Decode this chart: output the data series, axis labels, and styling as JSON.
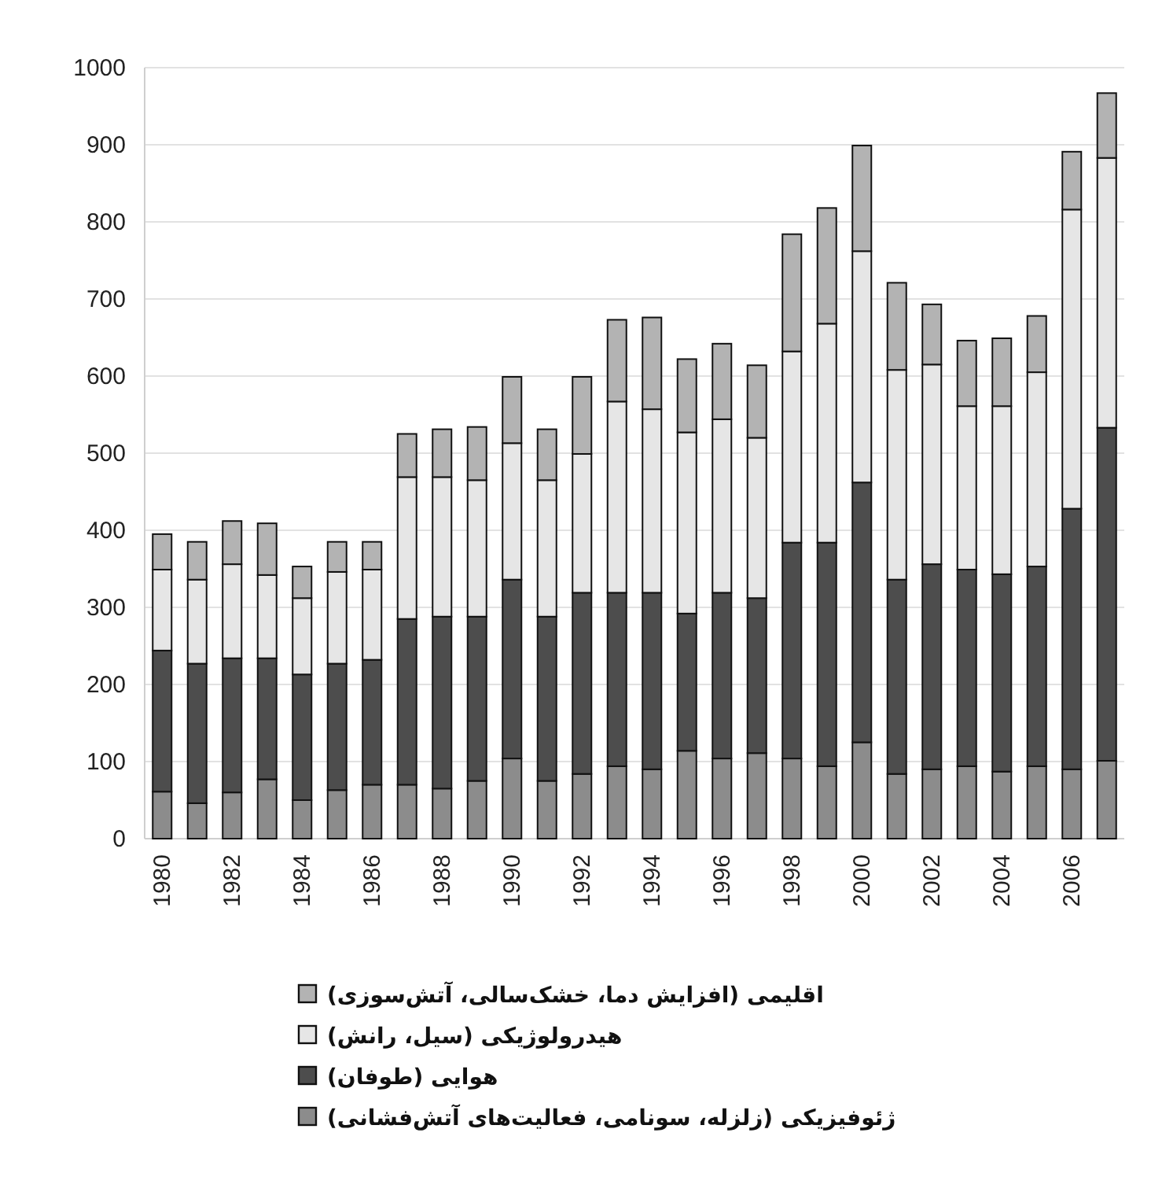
{
  "chart_data": {
    "type": "bar",
    "stacked": true,
    "grid": "y",
    "legend": "bottom",
    "categories": [
      "1980",
      null,
      "1982",
      null,
      "1984",
      null,
      "1986",
      null,
      "1988",
      null,
      "1990",
      null,
      "1992",
      null,
      "1994",
      null,
      "1996",
      null,
      "1998",
      null,
      "2000",
      null,
      "2002",
      null,
      "2004",
      null,
      "2006",
      null
    ],
    "ylim": [
      0,
      1000
    ],
    "yticks": [
      0,
      100,
      200,
      300,
      400,
      500,
      600,
      700,
      800,
      900,
      1000
    ],
    "series": [
      {
        "name": "ژئوفیزیکی (زلزله، سونامی، فعالیت‌های آتش‌فشانی)",
        "color": "#8c8c8c",
        "values": [
          61,
          46,
          60,
          77,
          50,
          63,
          70,
          70,
          65,
          75,
          104,
          75,
          84,
          94,
          90,
          114,
          104,
          111,
          104,
          94,
          125,
          84,
          90,
          94,
          87,
          94,
          90,
          101
        ]
      },
      {
        "name": "هوایی (طوفان)",
        "color": "#4d4d4d",
        "values": [
          183,
          181,
          174,
          157,
          163,
          164,
          162,
          215,
          223,
          213,
          232,
          213,
          235,
          225,
          229,
          178,
          215,
          201,
          280,
          290,
          337,
          252,
          266,
          255,
          256,
          259,
          338,
          432
        ]
      },
      {
        "name": "هیدرولوژیکی (سیل، رانش)",
        "color": "#e6e6e6",
        "values": [
          105,
          109,
          122,
          108,
          99,
          119,
          117,
          184,
          181,
          177,
          177,
          177,
          180,
          248,
          238,
          235,
          225,
          208,
          248,
          284,
          300,
          272,
          259,
          212,
          218,
          252,
          388,
          350
        ]
      },
      {
        "name": "اقلیمی (افزایش دما، خشک‌سالی، آتش‌سوزی)",
        "color": "#b3b3b3",
        "values": [
          46,
          49,
          56,
          67,
          41,
          39,
          36,
          56,
          62,
          69,
          86,
          66,
          100,
          106,
          119,
          95,
          98,
          94,
          152,
          150,
          137,
          113,
          78,
          85,
          88,
          73,
          75,
          84
        ]
      }
    ]
  }
}
